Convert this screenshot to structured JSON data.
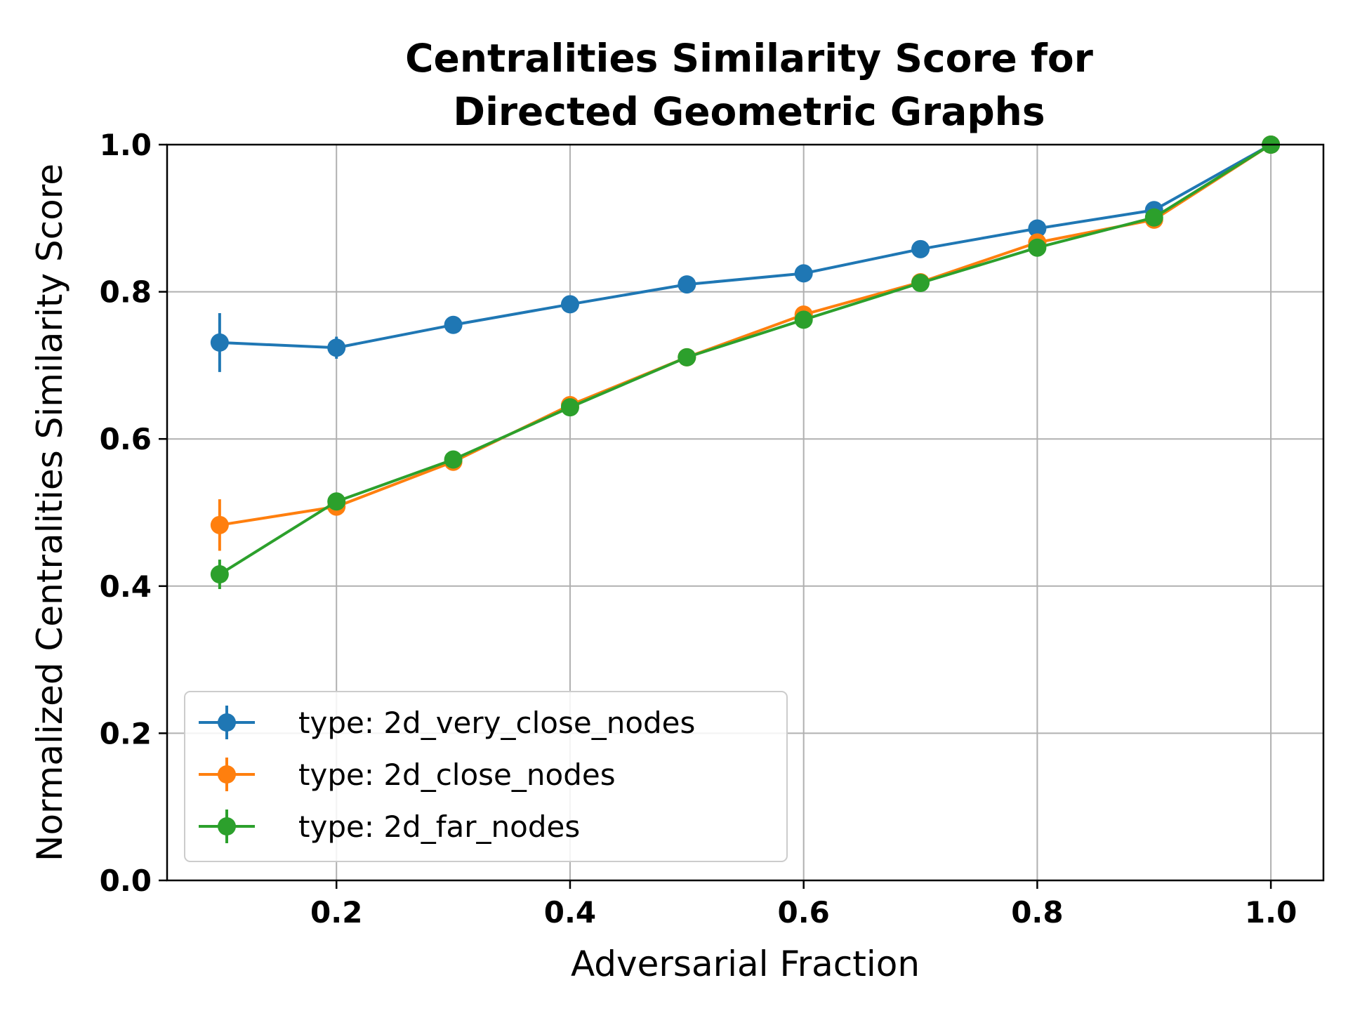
{
  "chart_data": {
    "type": "line",
    "title_lines": [
      "Centralities Similarity Score for",
      "Directed Geometric Graphs"
    ],
    "xlabel": "Adversarial Fraction",
    "ylabel": "Normalized Centralities Similarity Score",
    "xlim": [
      0.055,
      1.045
    ],
    "ylim": [
      0.0,
      1.0
    ],
    "xticks": [
      0.2,
      0.4,
      0.6,
      0.8,
      1.0
    ],
    "xtick_labels": [
      "0.2",
      "0.4",
      "0.6",
      "0.8",
      "1.0"
    ],
    "yticks": [
      0.0,
      0.2,
      0.4,
      0.6,
      0.8,
      1.0
    ],
    "ytick_labels": [
      "0.0",
      "0.2",
      "0.4",
      "0.6",
      "0.8",
      "1.0"
    ],
    "grid": true,
    "legend_position": "lower-left",
    "x": [
      0.1,
      0.2,
      0.3,
      0.4,
      0.5,
      0.6,
      0.7,
      0.8,
      0.9,
      1.0
    ],
    "series": [
      {
        "name": "type: 2d_very_close_nodes",
        "color": "#1f77b4",
        "values": [
          0.731,
          0.724,
          0.755,
          0.783,
          0.81,
          0.825,
          0.858,
          0.886,
          0.911,
          1.0
        ],
        "errors": [
          0.04,
          0.015,
          0.0,
          0.0,
          0.0,
          0.0,
          0.0,
          0.0,
          0.0,
          0.0
        ]
      },
      {
        "name": "type: 2d_close_nodes",
        "color": "#ff7f0e",
        "values": [
          0.483,
          0.508,
          0.569,
          0.646,
          0.711,
          0.769,
          0.813,
          0.867,
          0.898,
          1.0
        ],
        "errors": [
          0.035,
          0.01,
          0.0,
          0.0,
          0.0,
          0.0,
          0.0,
          0.0,
          0.0,
          0.0
        ]
      },
      {
        "name": "type: 2d_far_nodes",
        "color": "#2ca02c",
        "values": [
          0.416,
          0.515,
          0.572,
          0.643,
          0.711,
          0.762,
          0.812,
          0.86,
          0.901,
          1.0
        ],
        "errors": [
          0.02,
          0.01,
          0.0,
          0.0,
          0.0,
          0.0,
          0.0,
          0.0,
          0.0,
          0.0
        ]
      }
    ]
  }
}
